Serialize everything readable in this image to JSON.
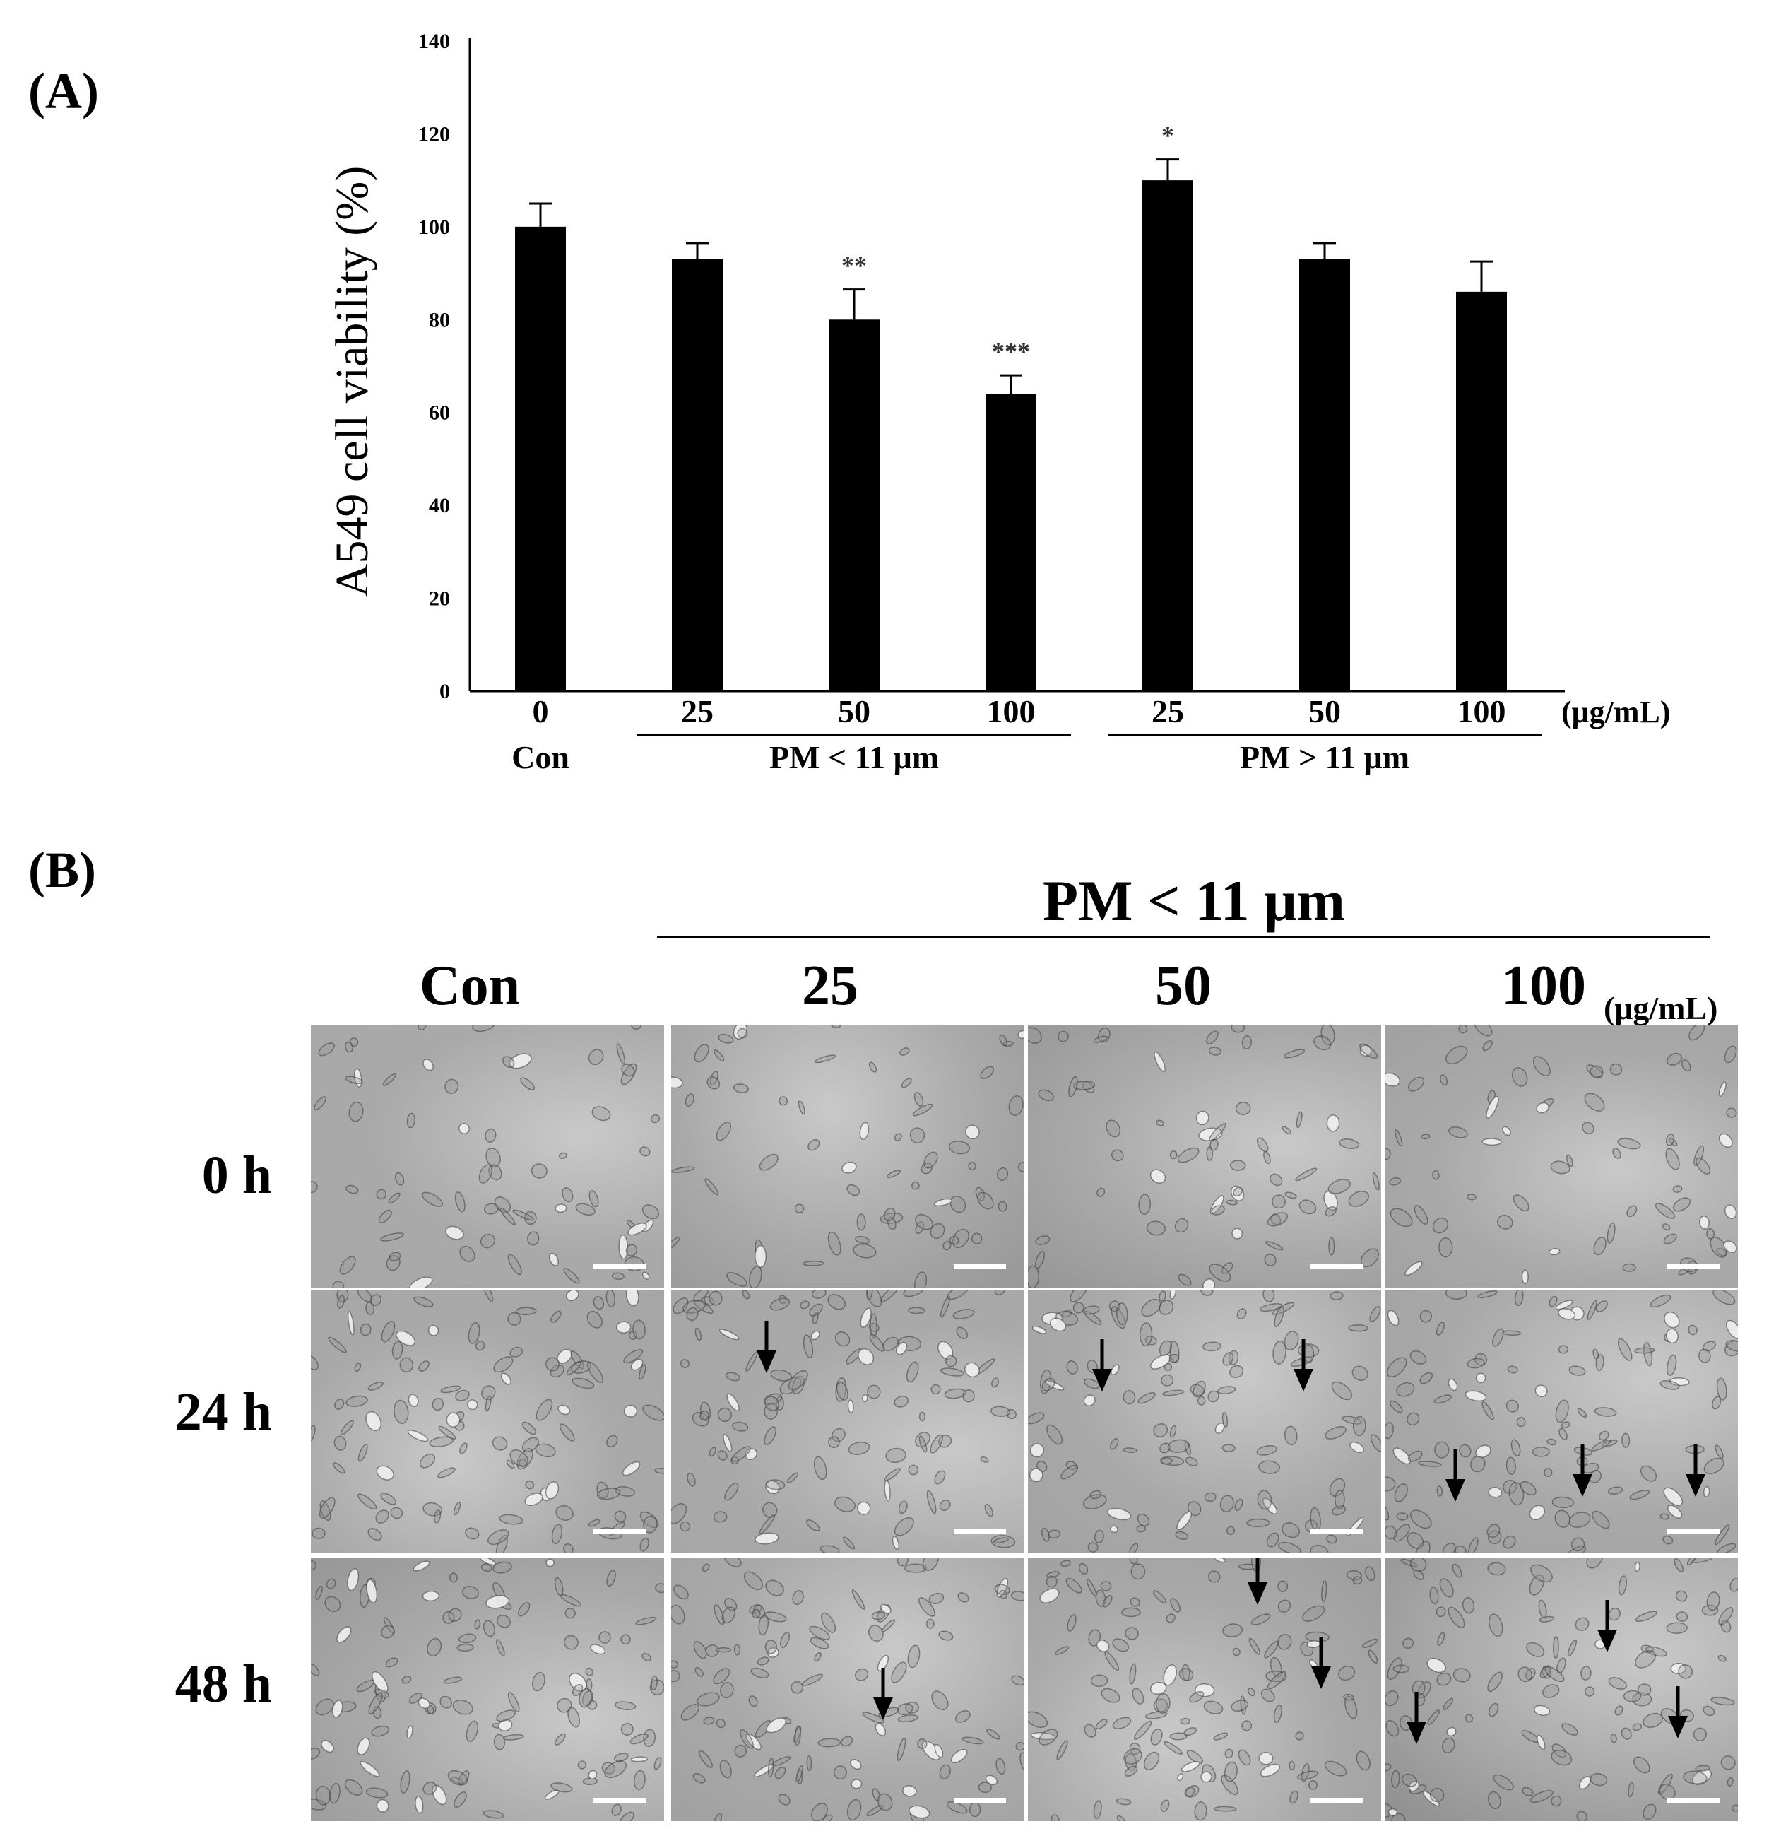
{
  "panel_a": {
    "label": "(A)"
  },
  "chart_data": {
    "type": "bar",
    "categories": [
      "0",
      "25",
      "50",
      "100",
      "25",
      "50",
      "100"
    ],
    "values": [
      100,
      93,
      80,
      64,
      110,
      93,
      86
    ],
    "errors": [
      5,
      3.5,
      6.5,
      4,
      4.5,
      3.5,
      6.5
    ],
    "significance": [
      "",
      "",
      "**",
      "***",
      "*",
      "",
      ""
    ],
    "groups": [
      {
        "label": "Con",
        "span": [
          0,
          0
        ],
        "underline": false
      },
      {
        "label": "PM < 11 μm",
        "span": [
          1,
          3
        ],
        "underline": true
      },
      {
        "label": "PM > 11 μm",
        "span": [
          4,
          6
        ],
        "underline": true
      }
    ],
    "xunit": "(μg/mL)",
    "ylabel": "A549 cell viability (%)",
    "ylim": [
      0,
      140
    ],
    "yticks": [
      "0",
      "20",
      "40",
      "60",
      "80",
      "100",
      "120",
      "140"
    ],
    "bar_color": "#000000",
    "grid": false
  },
  "panel_b": {
    "label": "(B)",
    "group_header": "PM < 11 μm",
    "columns": [
      "Con",
      "25",
      "50",
      "100"
    ],
    "unit": "(μg/mL)",
    "rows": [
      "0 h",
      "24 h",
      "48 h"
    ],
    "arrow_color": "#000000"
  }
}
